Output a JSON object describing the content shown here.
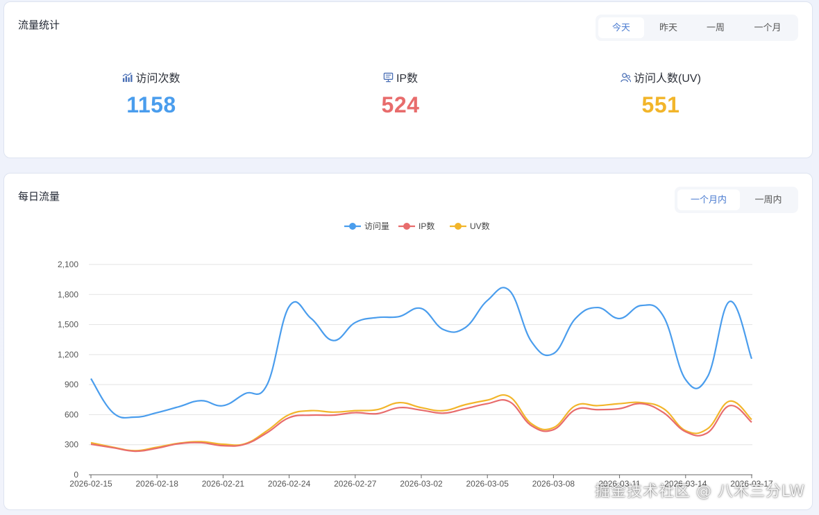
{
  "stats_card": {
    "title": "流量统计",
    "range_tabs": [
      "今天",
      "昨天",
      "一周",
      "一个月"
    ],
    "active_range": 0,
    "stats": [
      {
        "label": "访问次数",
        "value": "1158",
        "color": "#4a9ded",
        "icon": "bar-chart-icon"
      },
      {
        "label": "IP数",
        "value": "524",
        "color": "#e86c6c",
        "icon": "monitor-icon"
      },
      {
        "label": "访问人数(UV)",
        "value": "551",
        "color": "#f2b52a",
        "icon": "users-icon"
      }
    ]
  },
  "daily_card": {
    "title": "每日流量",
    "period_tabs": [
      "一个月内",
      "一周内"
    ],
    "active_period": 0
  },
  "chart_data": {
    "type": "line",
    "smooth": true,
    "legend_position": "top-center",
    "grid": true,
    "ylim": [
      0,
      2100
    ],
    "y_ticks": [
      "0",
      "300",
      "600",
      "900",
      "1,200",
      "1,500",
      "1,800",
      "2,100"
    ],
    "x_tick_labels": [
      "2026-02-15",
      "2026-02-18",
      "2026-02-21",
      "2026-02-24",
      "2026-02-27",
      "2026-03-02",
      "2026-03-05",
      "2026-03-08",
      "2026-03-11",
      "2026-03-14",
      "2026-03-17"
    ],
    "x": [
      "2026-02-15",
      "2026-02-16",
      "2026-02-17",
      "2026-02-18",
      "2026-02-19",
      "2026-02-20",
      "2026-02-21",
      "2026-02-22",
      "2026-02-23",
      "2026-02-24",
      "2026-02-25",
      "2026-02-26",
      "2026-02-27",
      "2026-02-28",
      "2026-03-01",
      "2026-03-02",
      "2026-03-03",
      "2026-03-04",
      "2026-03-05",
      "2026-03-06",
      "2026-03-07",
      "2026-03-08",
      "2026-03-09",
      "2026-03-10",
      "2026-03-11",
      "2026-03-12",
      "2026-03-13",
      "2026-03-14",
      "2026-03-15",
      "2026-03-16",
      "2026-03-17"
    ],
    "series": [
      {
        "name": "访问量",
        "color": "#4a9ded",
        "values": [
          960,
          620,
          575,
          620,
          680,
          740,
          690,
          810,
          900,
          1680,
          1560,
          1340,
          1520,
          1570,
          1580,
          1660,
          1450,
          1470,
          1740,
          1840,
          1330,
          1210,
          1560,
          1670,
          1560,
          1690,
          1580,
          950,
          980,
          1730,
          1158
        ]
      },
      {
        "name": "IP数",
        "color": "#e86c6c",
        "values": [
          305,
          270,
          235,
          265,
          310,
          320,
          290,
          305,
          420,
          570,
          595,
          595,
          620,
          610,
          670,
          645,
          615,
          660,
          710,
          730,
          490,
          450,
          650,
          650,
          660,
          710,
          620,
          430,
          420,
          690,
          524
        ]
      },
      {
        "name": "UV数",
        "color": "#f2b52a",
        "values": [
          320,
          275,
          240,
          275,
          315,
          330,
          305,
          310,
          440,
          600,
          640,
          625,
          640,
          650,
          720,
          670,
          640,
          700,
          745,
          780,
          510,
          470,
          690,
          690,
          710,
          720,
          660,
          440,
          460,
          735,
          551
        ]
      }
    ]
  },
  "watermark": "掘金技术社区 @ 八木三分LW"
}
